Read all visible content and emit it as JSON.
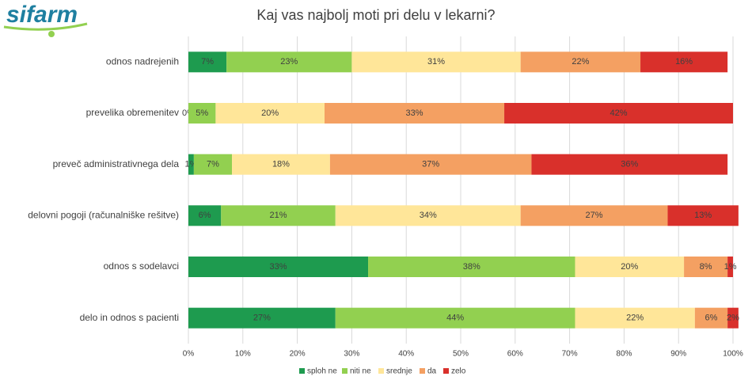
{
  "logo": "sifarm",
  "chart_data": {
    "type": "stacked-bar-horizontal",
    "title": "Kaj vas najbolj moti pri delu v lekarni?",
    "categories": [
      "odnos nadrejenih",
      "prevelika obremenitev",
      "preveč administrativnega dela",
      "delovni pogoji (računalniške rešitve)",
      "odnos s sodelavci",
      "delo in odnos s pacienti"
    ],
    "series": [
      {
        "name": "sploh ne",
        "color": "#1e9b4f",
        "values": [
          7,
          0,
          1,
          6,
          33,
          27
        ],
        "value_labels": [
          "7%",
          "0%",
          "1%",
          "6%",
          "33%",
          "27%"
        ]
      },
      {
        "name": "niti ne",
        "color": "#92d050",
        "values": [
          23,
          5,
          7,
          21,
          38,
          44
        ],
        "value_labels": [
          "23%",
          "5%",
          "7%",
          "21%",
          "38%",
          "44%"
        ]
      },
      {
        "name": "srednje",
        "color": "#ffe699",
        "values": [
          31,
          20,
          18,
          34,
          20,
          22
        ],
        "value_labels": [
          "31%",
          "20%",
          "18%",
          "34%",
          "20%",
          "22%"
        ]
      },
      {
        "name": "da",
        "color": "#f4a062",
        "values": [
          22,
          33,
          37,
          27,
          8,
          6
        ],
        "value_labels": [
          "22%",
          "33%",
          "37%",
          "27%",
          "8%",
          "6%"
        ]
      },
      {
        "name": "zelo",
        "color": "#d9302b",
        "values": [
          16,
          42,
          36,
          13,
          1,
          2
        ],
        "value_labels": [
          "16%",
          "42%",
          "36%",
          "13%",
          "1%",
          "2%"
        ]
      }
    ],
    "xlim": [
      0,
      100
    ],
    "xticks": [
      {
        "value": 0,
        "label": "0%"
      },
      {
        "value": 10,
        "label": "10%"
      },
      {
        "value": 20,
        "label": "20%"
      },
      {
        "value": 30,
        "label": "30%"
      },
      {
        "value": 40,
        "label": "40%"
      },
      {
        "value": 50,
        "label": "50%"
      },
      {
        "value": 60,
        "label": "60%"
      },
      {
        "value": 70,
        "label": "70%"
      },
      {
        "value": 80,
        "label": "80%"
      },
      {
        "value": 90,
        "label": "90%"
      },
      {
        "value": 100,
        "label": "100%"
      }
    ],
    "grid": true,
    "legend": "bottom"
  }
}
